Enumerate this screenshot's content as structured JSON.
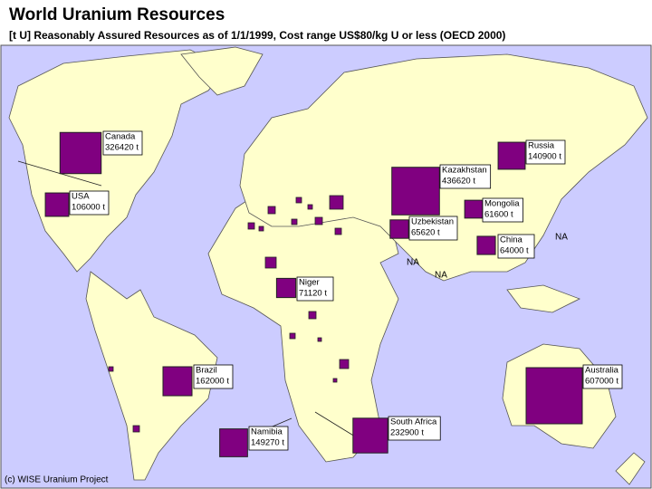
{
  "header": {
    "title": "World Uranium Resources",
    "subtitle": "[t U] Reasonably Assured Resources as of 1/1/1999, Cost range US$80/kg U or less  (OECD 2000)"
  },
  "unit": "t",
  "markers": [
    {
      "name": "Canada",
      "value": 326420,
      "value_label": "326420 t"
    },
    {
      "name": "USA",
      "value": 106000,
      "value_label": "106000 t"
    },
    {
      "name": "Russia",
      "value": 140900,
      "value_label": "140900 t"
    },
    {
      "name": "Kazakhstan",
      "value": 436620,
      "value_label": "436620 t"
    },
    {
      "name": "Uzbekistan",
      "value": 65620,
      "value_label": "65620 t"
    },
    {
      "name": "Mongolia",
      "value": 61600,
      "value_label": "61600 t"
    },
    {
      "name": "China",
      "value": 64000,
      "value_label": "64000 t"
    },
    {
      "name": "Niger",
      "value": 71120,
      "value_label": "71120 t"
    },
    {
      "name": "Brazil",
      "value": 162000,
      "value_label": "162000 t"
    },
    {
      "name": "Namibia",
      "value": 149270,
      "value_label": "149270 t"
    },
    {
      "name": "South Africa",
      "value": 232900,
      "value_label": "232900 t"
    },
    {
      "name": "Australia",
      "value": 607000,
      "value_label": "607000 t"
    }
  ],
  "na_labels": [
    "NA",
    "NA",
    "NA"
  ],
  "credit": "(c) WISE Uranium Project"
}
